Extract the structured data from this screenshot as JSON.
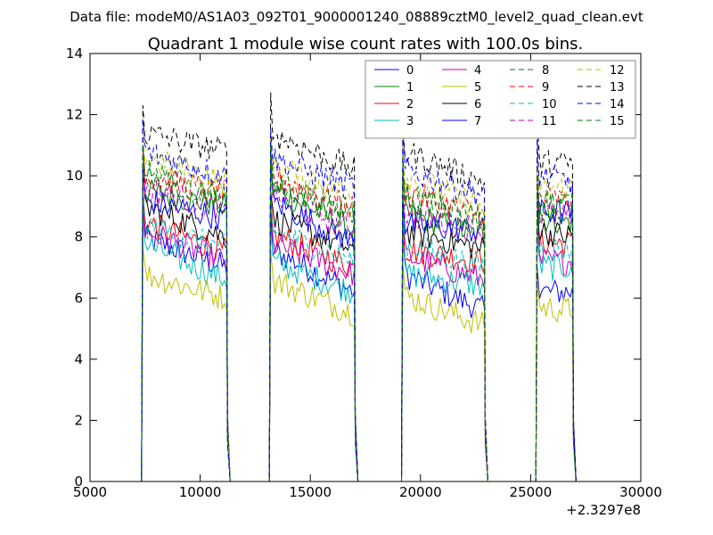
{
  "header": {
    "data_file": "Data file: modeM0/AS1A03_092T01_9000001240_08889cztM0_level2_quad_clean.evt"
  },
  "chart_data": {
    "type": "line",
    "title": "Quadrant 1 module wise count rates with 100.0s bins.",
    "xlabel": "",
    "ylabel": "",
    "x_offset_label": "+2.3297e8",
    "xlim": [
      5000,
      30000
    ],
    "ylim": [
      0,
      14
    ],
    "x_ticks": [
      5000,
      10000,
      15000,
      20000,
      25000,
      30000
    ],
    "y_ticks": [
      0,
      2,
      4,
      6,
      8,
      10,
      12,
      14
    ],
    "grid": false,
    "legend": "top-right",
    "legend_columns": 4,
    "segments": [
      [
        7400,
        11200
      ],
      [
        13200,
        17000
      ],
      [
        19200,
        22900
      ],
      [
        25300,
        26900
      ]
    ],
    "series": [
      {
        "name": "0",
        "color": "#0000ff",
        "dash": "solid",
        "levels": [
          8.0,
          7.0,
          6.2,
          5.6,
          6.2
        ]
      },
      {
        "name": "1",
        "color": "#008000",
        "dash": "solid",
        "levels": [
          9.5,
          9.0,
          8.2,
          8.0,
          8.5
        ]
      },
      {
        "name": "2",
        "color": "#ff0000",
        "dash": "solid",
        "levels": [
          8.5,
          7.5,
          7.0,
          7.2,
          7.8
        ]
      },
      {
        "name": "3",
        "color": "#00bfbf",
        "dash": "solid",
        "levels": [
          7.8,
          6.6,
          6.2,
          6.4,
          7.0
        ]
      },
      {
        "name": "4",
        "color": "#bf00bf",
        "dash": "solid",
        "levels": [
          8.2,
          7.2,
          6.8,
          6.6,
          7.2
        ]
      },
      {
        "name": "5",
        "color": "#bfbf00",
        "dash": "solid",
        "levels": [
          6.8,
          6.0,
          5.5,
          5.1,
          5.6
        ]
      },
      {
        "name": "6",
        "color": "#000000",
        "dash": "solid",
        "levels": [
          9.0,
          8.0,
          7.6,
          7.6,
          8.0
        ]
      },
      {
        "name": "7",
        "color": "#0000ff",
        "dash": "solid",
        "levels": [
          9.2,
          8.6,
          7.8,
          8.2,
          8.8
        ]
      },
      {
        "name": "8",
        "color": "#008000",
        "dash": "dashed",
        "levels": [
          10.2,
          9.2,
          8.6,
          8.4,
          9.0
        ]
      },
      {
        "name": "9",
        "color": "#ff0000",
        "dash": "dashed",
        "levels": [
          10.0,
          9.4,
          8.9,
          8.7,
          9.2
        ]
      },
      {
        "name": "10",
        "color": "#00bfbf",
        "dash": "dashed",
        "levels": [
          8.4,
          7.6,
          7.2,
          7.0,
          7.6
        ]
      },
      {
        "name": "11",
        "color": "#bf00bf",
        "dash": "dashed",
        "levels": [
          9.6,
          8.8,
          8.2,
          8.2,
          8.6
        ]
      },
      {
        "name": "12",
        "color": "#bfbf00",
        "dash": "dashed",
        "levels": [
          10.6,
          9.8,
          9.4,
          9.0,
          9.6
        ]
      },
      {
        "name": "13",
        "color": "#000000",
        "dash": "dashed",
        "levels": [
          11.4,
          10.8,
          10.2,
          9.8,
          10.4
        ]
      },
      {
        "name": "14",
        "color": "#0000ff",
        "dash": "dashed",
        "levels": [
          10.8,
          10.0,
          9.6,
          9.4,
          9.8
        ]
      },
      {
        "name": "15",
        "color": "#008000",
        "dash": "dashed",
        "levels": [
          9.9,
          9.2,
          8.8,
          8.6,
          9.1
        ]
      }
    ]
  }
}
